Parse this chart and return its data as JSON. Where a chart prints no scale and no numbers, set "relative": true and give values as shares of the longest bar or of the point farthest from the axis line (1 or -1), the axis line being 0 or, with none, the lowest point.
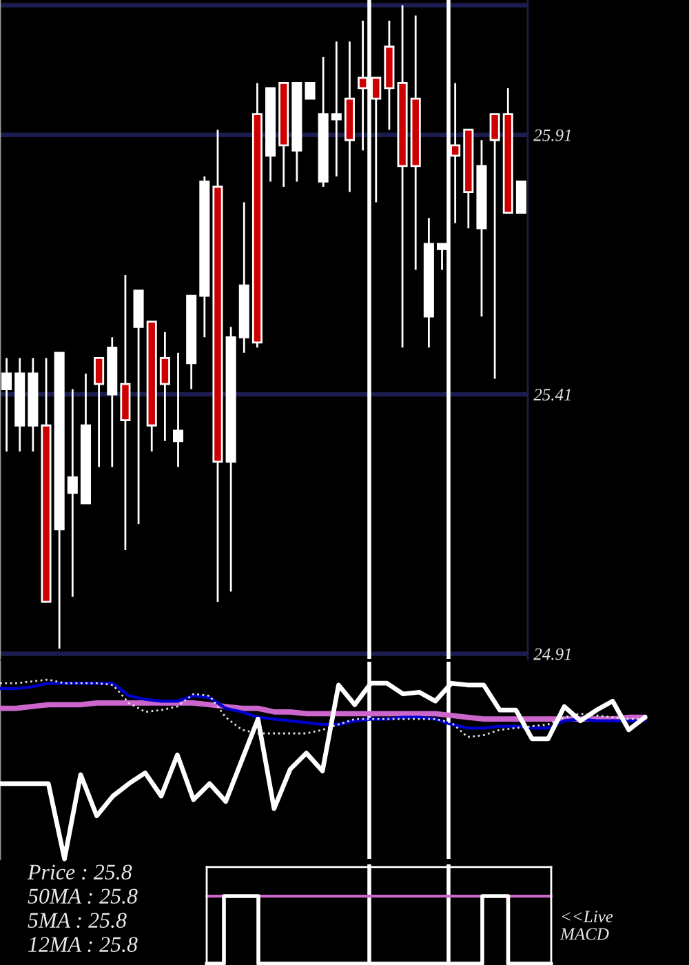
{
  "chart_data": [
    {
      "type": "candlestick",
      "categories": [
        null,
        null,
        null,
        null,
        null,
        null,
        null,
        null,
        null,
        null,
        null,
        null,
        null,
        null,
        null,
        null,
        null,
        null,
        null,
        null,
        null,
        null,
        null,
        null,
        null,
        null,
        null,
        null,
        null,
        null,
        null,
        null,
        null,
        null,
        null,
        null,
        null,
        null,
        null,
        null
      ],
      "ohlc": [
        [
          25.42,
          25.48,
          25.3,
          25.45
        ],
        [
          25.35,
          25.48,
          25.3,
          25.45
        ],
        [
          25.35,
          25.48,
          25.3,
          25.45
        ],
        [
          25.35,
          25.48,
          25.01,
          25.01
        ],
        [
          25.15,
          25.49,
          24.92,
          25.49
        ],
        [
          25.22,
          25.42,
          25.02,
          25.25
        ],
        [
          25.2,
          25.45,
          25.2,
          25.35
        ],
        [
          25.48,
          25.48,
          25.27,
          25.43
        ],
        [
          25.41,
          25.52,
          25.27,
          25.5
        ],
        [
          25.43,
          25.64,
          25.11,
          25.36
        ],
        [
          25.54,
          25.61,
          25.16,
          25.61
        ],
        [
          25.55,
          25.55,
          25.3,
          25.35
        ],
        [
          25.48,
          25.53,
          25.32,
          25.43
        ],
        [
          25.32,
          25.49,
          25.27,
          25.34
        ],
        [
          25.47,
          25.6,
          25.42,
          25.6
        ],
        [
          25.6,
          25.83,
          25.52,
          25.82
        ],
        [
          25.81,
          25.92,
          25.01,
          25.28
        ],
        [
          25.28,
          25.54,
          25.03,
          25.52
        ],
        [
          25.52,
          25.78,
          25.49,
          25.62
        ],
        [
          25.95,
          26.01,
          25.5,
          25.51
        ],
        [
          25.87,
          26.0,
          25.82,
          26.0
        ],
        [
          26.01,
          26.01,
          25.81,
          25.89
        ],
        [
          25.88,
          26.01,
          25.82,
          26.01
        ],
        [
          25.98,
          26.01,
          25.98,
          26.01
        ],
        [
          25.82,
          26.06,
          25.81,
          25.95
        ],
        [
          25.94,
          26.09,
          25.83,
          25.95
        ],
        [
          25.98,
          26.09,
          25.8,
          25.9
        ],
        [
          26.02,
          26.13,
          25.88,
          26.0
        ],
        [
          26.02,
          26.02,
          25.78,
          25.98
        ],
        [
          26.08,
          26.13,
          25.92,
          26.0
        ],
        [
          26.01,
          26.16,
          25.5,
          25.85
        ],
        [
          25.98,
          26.14,
          25.65,
          25.85
        ],
        [
          25.56,
          25.75,
          25.5,
          25.7
        ],
        [
          25.69,
          25.7,
          25.65,
          25.7
        ],
        [
          25.89,
          26.01,
          25.74,
          25.87
        ],
        [
          25.92,
          25.92,
          25.73,
          25.8
        ],
        [
          25.73,
          25.9,
          25.56,
          25.85
        ],
        [
          25.95,
          25.95,
          25.44,
          25.9
        ],
        [
          25.95,
          26.0,
          25.76,
          25.76
        ],
        [
          25.76,
          25.82,
          25.76,
          25.82
        ]
      ],
      "colors": [
        "#ffffff",
        "#ffffff",
        "#ffffff",
        "#cc0000",
        "#ffffff",
        "#ffffff",
        "#ffffff",
        "#cc0000",
        "#ffffff",
        "#cc0000",
        "#ffffff",
        "#cc0000",
        "#cc0000",
        "#ffffff",
        "#ffffff",
        "#ffffff",
        "#cc0000",
        "#ffffff",
        "#ffffff",
        "#cc0000",
        "#ffffff",
        "#cc0000",
        "#ffffff",
        "#ffffff",
        "#ffffff",
        "#ffffff",
        "#cc0000",
        "#cc0000",
        "#cc0000",
        "#cc0000",
        "#cc0000",
        "#cc0000",
        "#ffffff",
        "#ffffff",
        "#cc0000",
        "#cc0000",
        "#ffffff",
        "#cc0000",
        "#cc0000",
        "#ffffff"
      ],
      "ylim": [
        24.9,
        26.17
      ],
      "yticks": [
        {
          "value": 26.16,
          "label": null
        },
        25.91,
        25.41,
        24.91
      ],
      "grid": "y",
      "tick_labels": "y"
    },
    {
      "type": "line",
      "relative": true,
      "categories": [
        null,
        null,
        null,
        null,
        null,
        null,
        null,
        null,
        null,
        null,
        null,
        null,
        null,
        null,
        null,
        null,
        null,
        null,
        null,
        null,
        null,
        null,
        null,
        null,
        null,
        null,
        null,
        null,
        null,
        null,
        null,
        null,
        null,
        null,
        null,
        null,
        null,
        null,
        null,
        null,
        null
      ],
      "series": [
        {
          "color": "#cc66cc",
          "values": [
            0.84,
            0.84,
            0.85,
            0.86,
            0.86,
            0.86,
            0.87,
            0.87,
            0.87,
            0.87,
            0.87,
            0.87,
            0.87,
            0.86,
            0.85,
            0.84,
            0.84,
            0.82,
            0.82,
            0.81,
            0.81,
            0.81,
            0.81,
            0.81,
            0.81,
            0.81,
            0.81,
            0.81,
            0.8,
            0.79,
            0.78,
            0.78,
            0.78,
            0.78,
            0.78,
            0.78,
            0.78,
            0.78,
            0.78,
            0.79,
            0.79
          ]
        },
        {
          "color": "#0000cc",
          "values": [
            0.95,
            0.95,
            0.96,
            0.98,
            0.98,
            0.98,
            0.98,
            0.98,
            0.91,
            0.89,
            0.88,
            0.88,
            0.91,
            0.9,
            0.84,
            0.82,
            0.79,
            0.78,
            0.77,
            0.76,
            0.75,
            0.75,
            0.77,
            0.78,
            0.78,
            0.79,
            0.79,
            0.78,
            0.75,
            0.73,
            0.73,
            0.74,
            0.74,
            0.73,
            0.73,
            0.77,
            0.78,
            0.77,
            0.77,
            0.77,
            0.77
          ]
        },
        {
          "color": "#e0e0e0",
          "line_style": "dotted",
          "values": [
            0.98,
            0.98,
            0.99,
            1,
            0.98,
            0.98,
            0.98,
            0.97,
            0.87,
            0.82,
            0.83,
            0.85,
            0.92,
            0.91,
            0.79,
            0.72,
            0.7,
            0.7,
            0.7,
            0.7,
            0.72,
            0.75,
            0.78,
            0.78,
            0.78,
            0.78,
            0.78,
            0.78,
            0.76,
            0.68,
            0.69,
            0.72,
            0.73,
            0.74,
            0.75,
            0.79,
            0.81,
            0.8,
            0.79,
            0.78,
            0.78
          ]
        },
        {
          "color": "#ffffff",
          "values": [
            0.42,
            0.42,
            0.42,
            0.42,
            0,
            0.47,
            0.24,
            0.35,
            0.42,
            0.48,
            0.35,
            0.58,
            0.33,
            0.42,
            0.32,
            0.55,
            0.78,
            0.28,
            0.5,
            0.59,
            0.49,
            0.97,
            0.86,
            0.98,
            0.98,
            0.92,
            0.93,
            0.88,
            0.98,
            0.97,
            0.97,
            0.83,
            0.83,
            0.67,
            0.67,
            0.85,
            0.77,
            0.83,
            0.88,
            0.72,
            0.79
          ]
        }
      ],
      "tick_labels": false
    },
    {
      "type": "other",
      "annotations": [
        "Price : 25.8",
        "50MA : 25.8",
        "5MA : 25.8",
        "12MA : 25.8"
      ]
    },
    {
      "type": "step",
      "relative": true,
      "categories": [
        null,
        null,
        null,
        null,
        null,
        null,
        null,
        null,
        null,
        null,
        null,
        null,
        null,
        null,
        null,
        null,
        null,
        null,
        null,
        null,
        null,
        null,
        null,
        null,
        null,
        null,
        null,
        null,
        null,
        null,
        null,
        null,
        null,
        null,
        null,
        null,
        null,
        null,
        null,
        null,
        null
      ],
      "series": [
        {
          "color": "#ffffff",
          "values": [
            0,
            0,
            1,
            1,
            1,
            1,
            0,
            0,
            0,
            0,
            0,
            0,
            0,
            0,
            0,
            0,
            0,
            0,
            0,
            0,
            0,
            0,
            0,
            0,
            0,
            0,
            0,
            0,
            0,
            0,
            0,
            0,
            1,
            1,
            1,
            0,
            0,
            0,
            0,
            0,
            0
          ]
        }
      ],
      "ref_lines": [
        {
          "axis": "y",
          "value": 1,
          "color": "#cc66cc"
        }
      ],
      "tick_labels": false,
      "annotations": [
        "<<Live\nMACD"
      ]
    }
  ]
}
